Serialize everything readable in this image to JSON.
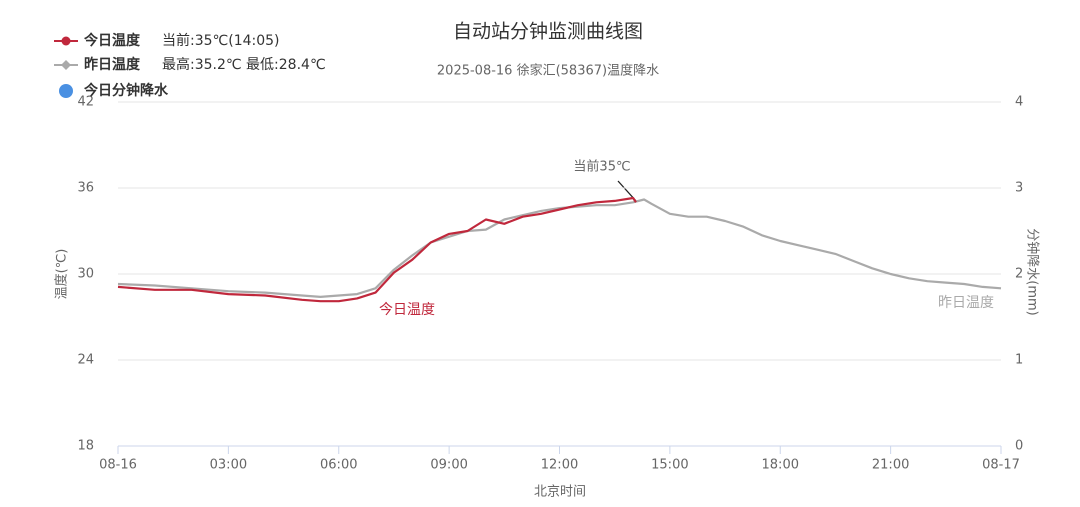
{
  "chart_data": {
    "type": "line",
    "title": "自动站分钟监测曲线图",
    "subtitle": "2025-08-16 徐家汇(58367)温度降水",
    "x_label": "北京时间",
    "y_label": "温度(℃)",
    "y2_label": "分钟降水(mm)",
    "annotation": "当前35℃",
    "xlim": [
      0,
      24
    ],
    "xticks": [
      {
        "value": 0,
        "label": "08-16"
      },
      {
        "value": 3,
        "label": "03:00"
      },
      {
        "value": 6,
        "label": "06:00"
      },
      {
        "value": 9,
        "label": "09:00"
      },
      {
        "value": 12,
        "label": "12:00"
      },
      {
        "value": 15,
        "label": "15:00"
      },
      {
        "value": 18,
        "label": "18:00"
      },
      {
        "value": 21,
        "label": "21:00"
      },
      {
        "value": 24,
        "label": "08-17"
      }
    ],
    "ylim": [
      18,
      42
    ],
    "yticks": [
      18,
      24,
      30,
      36,
      42
    ],
    "y2lim": [
      0,
      4
    ],
    "y2ticks": [
      0,
      1,
      2,
      3,
      4
    ],
    "grid": true,
    "series": [
      {
        "name": "今日温度",
        "note": "当前:35℃(14:05)",
        "color": "#c0283c",
        "marker": "circle",
        "x": [
          0,
          1,
          2,
          3,
          4,
          5,
          5.5,
          6,
          6.5,
          7,
          7.5,
          8,
          8.5,
          9,
          9.5,
          10,
          10.5,
          11,
          11.5,
          12,
          12.5,
          13,
          13.5,
          14,
          14.08
        ],
        "values": [
          29.1,
          28.9,
          28.9,
          28.6,
          28.5,
          28.2,
          28.1,
          28.1,
          28.3,
          28.7,
          30.1,
          31.0,
          32.2,
          32.8,
          33.0,
          33.8,
          33.5,
          34.0,
          34.2,
          34.5,
          34.8,
          35.0,
          35.1,
          35.3,
          35.0
        ]
      },
      {
        "name": "昨日温度",
        "note": "最高:35.2℃ 最低:28.4℃",
        "color": "#aaaaaa",
        "marker": "diamond",
        "x": [
          0,
          1,
          2,
          3,
          4,
          5,
          5.5,
          6,
          6.5,
          7,
          7.5,
          8,
          8.5,
          9,
          9.5,
          10,
          10.5,
          11,
          11.5,
          12,
          12.5,
          13,
          13.5,
          14,
          14.3,
          14.5,
          15,
          15.5,
          16,
          16.5,
          17,
          17.5,
          18,
          18.5,
          19,
          19.5,
          20,
          20.5,
          21,
          21.5,
          22,
          22.5,
          23,
          23.5,
          24
        ],
        "values": [
          29.3,
          29.2,
          29.0,
          28.8,
          28.7,
          28.5,
          28.4,
          28.5,
          28.6,
          29.0,
          30.3,
          31.3,
          32.2,
          32.6,
          33.0,
          33.1,
          33.8,
          34.1,
          34.4,
          34.6,
          34.7,
          34.8,
          34.8,
          35.0,
          35.2,
          34.9,
          34.2,
          34.0,
          34.0,
          33.7,
          33.3,
          32.7,
          32.3,
          32.0,
          31.7,
          31.4,
          30.9,
          30.4,
          30.0,
          29.7,
          29.5,
          29.4,
          29.3,
          29.1,
          29.0
        ]
      },
      {
        "name": "今日分钟降水",
        "color": "#4a90e2",
        "marker": "dot",
        "axis": "y2",
        "x": [],
        "values": []
      }
    ]
  }
}
